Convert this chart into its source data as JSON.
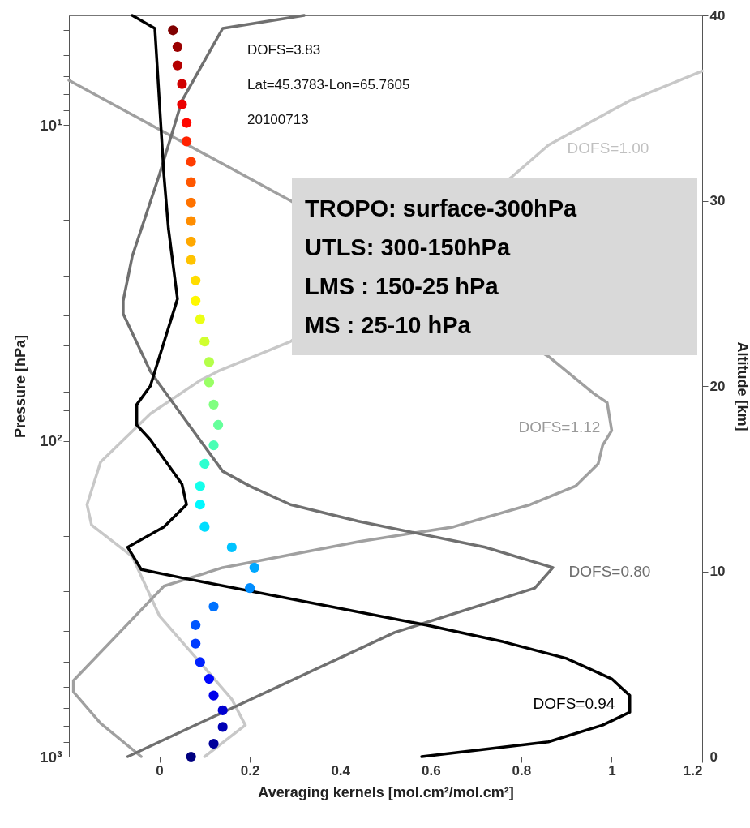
{
  "chart_data": {
    "type": "line",
    "xlabel": "Averaging kernels [mol.cm²/mol.cm²]",
    "ylabel": "Pressure [hPa]",
    "y2label": "Altitude [km]",
    "xlim": [
      -0.2,
      1.2
    ],
    "xticks": [
      0,
      0.2,
      0.4,
      0.6,
      0.8,
      1,
      1.2
    ],
    "log": "y",
    "ylim": [
      1000,
      4.5
    ],
    "yticks": [
      {
        "value": 1000,
        "label": "10³"
      },
      {
        "value": 900,
        "label": null
      },
      {
        "value": 800,
        "label": null
      },
      {
        "value": 700,
        "label": null
      },
      {
        "value": 600,
        "label": null
      },
      {
        "value": 500,
        "label": null
      },
      {
        "value": 400,
        "label": null
      },
      {
        "value": 300,
        "label": null
      },
      {
        "value": 200,
        "label": null
      },
      {
        "value": 100,
        "label": "10²"
      },
      {
        "value": 90,
        "label": null
      },
      {
        "value": 80,
        "label": null
      },
      {
        "value": 70,
        "label": null
      },
      {
        "value": 60,
        "label": null
      },
      {
        "value": 50,
        "label": null
      },
      {
        "value": 40,
        "label": null
      },
      {
        "value": 30,
        "label": null
      },
      {
        "value": 20,
        "label": null
      },
      {
        "value": 10,
        "label": "10¹"
      },
      {
        "value": 9,
        "label": null
      },
      {
        "value": 8,
        "label": null
      },
      {
        "value": 7,
        "label": null
      },
      {
        "value": 6,
        "label": null
      },
      {
        "value": 5,
        "label": null
      }
    ],
    "y2lim": [
      0,
      40
    ],
    "y2ticks": [
      0,
      10,
      20,
      30,
      40
    ],
    "grid": false,
    "series": [
      {
        "axis": "y2",
        "color": "#c8c8c8",
        "x": [
          0.1,
          0.19,
          0.16,
          0.1,
          0,
          -0.06,
          -0.15,
          -0.16,
          -0.13,
          -0.02,
          0.09,
          0.13,
          0.29,
          0.78,
          0.86,
          1.04,
          1.2
        ],
        "values": [
          0,
          1.7,
          3.1,
          4.8,
          7.6,
          10.8,
          12.5,
          13.6,
          15.9,
          18.5,
          20.3,
          20.8,
          22.4,
          31.3,
          33,
          35.4,
          37
        ]
      },
      {
        "axis": "y2",
        "color": "#a0a0a0",
        "x": [
          -0.04,
          -0.13,
          -0.19,
          -0.19,
          0.01,
          0.14,
          0.44,
          0.65,
          0.82,
          0.92,
          0.97,
          0.98,
          1.0,
          0.99,
          0.96,
          0.86,
          0.29,
          -0.2
        ],
        "values": [
          0,
          1.8,
          3.5,
          4.1,
          9.2,
          10.2,
          11.6,
          12.4,
          13.6,
          14.6,
          15.8,
          16.8,
          17.6,
          19.1,
          19.6,
          21.6,
          30,
          36.5
        ]
      },
      {
        "axis": "y2",
        "color": "#707070",
        "x": [
          -0.07,
          0.52,
          0.83,
          0.87,
          0.72,
          0.44,
          0.29,
          0.2,
          0.14,
          0,
          -0.02,
          -0.08,
          -0.08,
          -0.06,
          0,
          0.05,
          0.14,
          0.32
        ],
        "values": [
          0,
          6.7,
          9.1,
          10.2,
          11.3,
          12.7,
          13.6,
          14.6,
          15.4,
          20.1,
          20.8,
          23.9,
          24.6,
          27,
          31.4,
          35.4,
          39.3,
          40
        ]
      },
      {
        "axis": "y2",
        "color": "#000000",
        "x": [
          0.58,
          0.86,
          0.98,
          1.04,
          1.04,
          1.0,
          0.9,
          0.76,
          0.59,
          0.06,
          -0.04,
          -0.07,
          0.01,
          0.06,
          0.05,
          -0.02,
          -0.05,
          -0.05,
          -0.02,
          0.04,
          0.02,
          0.01,
          -0.01,
          -0.06
        ],
        "values": [
          0,
          0.8,
          1.7,
          2.4,
          3.3,
          4.2,
          5.3,
          6.2,
          7.1,
          9.6,
          10.1,
          11.3,
          12.4,
          13.6,
          14.7,
          17.1,
          17.9,
          19,
          20,
          24.7,
          28.5,
          31.4,
          39.3,
          40
        ]
      },
      {
        "type": "scatter",
        "axis": "y2",
        "marker": "circle",
        "x": [
          0.07,
          0.12,
          0.14,
          0.14,
          0.12,
          0.11,
          0.09,
          0.08,
          0.08,
          0.12,
          0.2,
          0.21,
          0.16,
          0.1,
          0.09,
          0.09,
          0.1,
          0.12,
          0.13,
          0.12,
          0.11,
          0.11,
          0.1,
          0.09,
          0.08,
          0.08,
          0.07,
          0.07,
          0.07,
          0.07,
          0.07,
          0.07,
          0.06,
          0.06,
          0.05,
          0.05,
          0.04,
          0.04,
          0.03
        ],
        "values": [
          0,
          0.7,
          1.6,
          2.5,
          3.3,
          4.2,
          5.1,
          6.1,
          7.1,
          8.1,
          9.1,
          10.2,
          11.3,
          12.4,
          13.6,
          14.6,
          15.8,
          16.8,
          17.9,
          19,
          20.2,
          21.3,
          22.4,
          23.6,
          24.6,
          25.7,
          26.8,
          27.8,
          28.9,
          29.9,
          31,
          32.1,
          33.2,
          34.2,
          35.2,
          36.3,
          37.3,
          38.3,
          39.2
        ],
        "colors": [
          "#000080",
          "#00009a",
          "#0000b5",
          "#0000d0",
          "#0000eb",
          "#0007ff",
          "#0022ff",
          "#003cff",
          "#0057ff",
          "#0072ff",
          "#008dff",
          "#00a8ff",
          "#00c3ff",
          "#00ddff",
          "#00f8ff",
          "#14ffeb",
          "#2fffd0",
          "#4affb5",
          "#65ff9a",
          "#80ff80",
          "#9aff65",
          "#b5ff4a",
          "#d0ff2f",
          "#ebff14",
          "#fff800",
          "#ffdd00",
          "#ffc300",
          "#ffa800",
          "#ff8d00",
          "#ff7200",
          "#ff5700",
          "#ff3c00",
          "#ff2200",
          "#ff0700",
          "#eb0000",
          "#d00000",
          "#b50000",
          "#9a0000",
          "#800000"
        ]
      }
    ],
    "annotations": [
      "DOFS=3.83",
      "Lat=45.3783-Lon=65.7605",
      "20100713",
      "TROPO: surface-300hPa",
      "UTLS: 300-150hPa",
      "LMS : 150-25 hPa",
      "MS : 25-10 hPa",
      "DOFS=1.00",
      "DOFS=1.12",
      "DOFS=0.80",
      "DOFS=0.94"
    ]
  }
}
